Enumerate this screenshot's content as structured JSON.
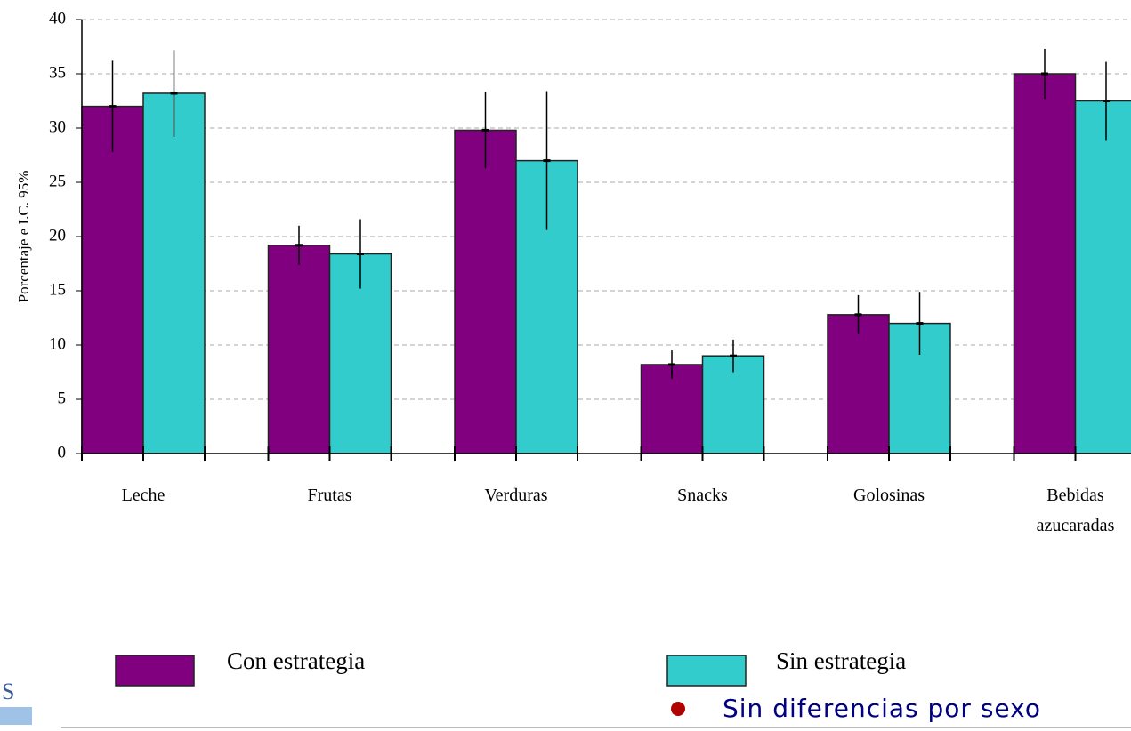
{
  "chart_data": {
    "type": "bar",
    "y_label": "Porcentaje e I.C. 95%",
    "categories": [
      "Leche",
      "Frutas",
      "Verduras",
      "Snacks",
      "Golosinas",
      "Bebidas azucaradas"
    ],
    "series": [
      {
        "name": "Con estrategia",
        "color": "#800080",
        "values": [
          32,
          19.2,
          29.8,
          8.2,
          12.8,
          35
        ],
        "errors": [
          4.2,
          1.8,
          3.5,
          1.3,
          1.8,
          2.3
        ]
      },
      {
        "name": "Sin estrategia",
        "color": "#33cccc",
        "values": [
          33.2,
          18.4,
          27,
          9,
          12,
          32.5
        ],
        "errors": [
          4,
          3.2,
          6.4,
          1.5,
          2.9,
          3.6
        ]
      }
    ],
    "ylim": [
      0,
      40
    ],
    "yticks": [
      0,
      5,
      10,
      15,
      20,
      25,
      30,
      35,
      40
    ],
    "grid": true,
    "legend": "bottom",
    "annotation": "Sin diferencias por sexo"
  }
}
